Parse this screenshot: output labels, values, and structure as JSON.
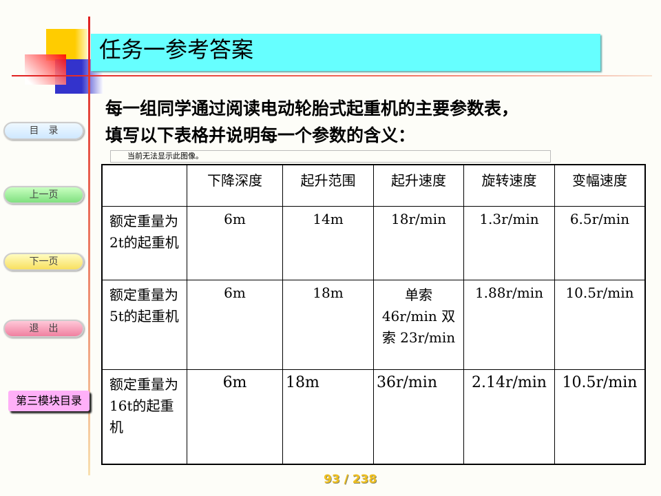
{
  "title": "任务一参考答案",
  "intro": [
    "每一组同学通过阅读电动轮胎式起重机的主要参数表，",
    "填写以下表格并说明每一个参数的含义："
  ],
  "placeholder": "当前无法显示此图像。",
  "nav": {
    "toc": "目　录",
    "prev": "上一页",
    "next": "下一页",
    "exit": "退　出",
    "module": "第三模块目录"
  },
  "table": {
    "headers": [
      "",
      "下降深度",
      "起升范围",
      "起升速度",
      "旋转速度",
      "变幅速度"
    ],
    "rows": [
      {
        "label": "额定重量为2t的起重机",
        "cells": [
          "6m",
          "14m",
          "18r/min",
          "1.3r/min",
          "6.5r/min"
        ]
      },
      {
        "label": "额定重量为5t的起重机",
        "cells": [
          "6m",
          "18m",
          "单索 46r/min 双索 23r/min",
          "1.88r/min",
          "10.5r/min"
        ]
      },
      {
        "label": "额定重量为16t的起重机",
        "cells": [
          "6m",
          "18m",
          "36r/min",
          "2.14r/min",
          "10.5r/min"
        ]
      }
    ]
  },
  "page": "93 / 238"
}
